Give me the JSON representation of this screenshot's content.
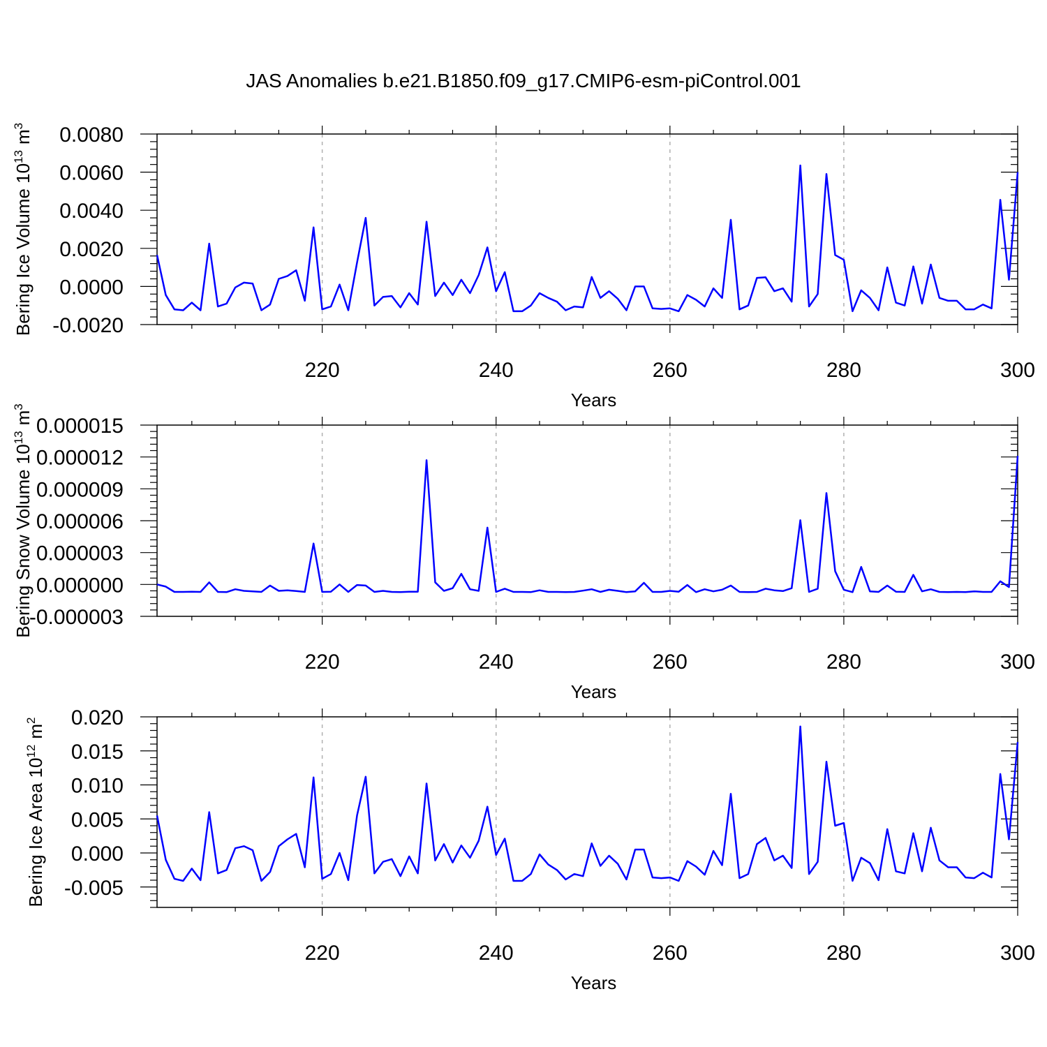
{
  "page": {
    "title": "JAS Anomalies b.e21.B1850.f09_g17.CMIP6-esm-piControl.001"
  },
  "colors": {
    "line": "#0000ff",
    "axis": "#000000",
    "grid": "#b0b0b0"
  },
  "chart_data": [
    {
      "type": "line",
      "title": "",
      "xlabel": "Years",
      "ylabel": "Bering Ice Volume 10",
      "ylabel_sup": "13",
      "ylabel_unit": "m",
      "ylabel_unit_sup": "3",
      "xlim": [
        201,
        300
      ],
      "ylim": [
        -0.002,
        0.008
      ],
      "xticks": [
        220,
        240,
        260,
        280,
        300
      ],
      "xtick_labels": [
        "220",
        "240",
        "260",
        "280",
        "300"
      ],
      "yticks": [
        -0.002,
        0.0,
        0.002,
        0.004,
        0.006,
        0.008
      ],
      "ytick_labels": [
        "-0.0020",
        "0.0000",
        "0.0020",
        "0.0040",
        "0.0060",
        "0.0080"
      ],
      "grid": "vertical dashed",
      "x_start": 201,
      "series": [
        {
          "values": [
            0.00165,
            -0.00045,
            -0.0012,
            -0.00125,
            -0.00085,
            -0.00125,
            0.00225,
            -0.00105,
            -0.0009,
            -5e-05,
            0.0002,
            0.00015,
            -0.00125,
            -0.00095,
            0.0004,
            0.00055,
            0.00085,
            -0.00075,
            0.0031,
            -0.0012,
            -0.00105,
            0.0001,
            -0.00125,
            0.00125,
            0.0036,
            -0.001,
            -0.00055,
            -0.0005,
            -0.0011,
            -0.00035,
            -0.00095,
            0.0034,
            -0.0005,
            0.0002,
            -0.00045,
            0.00035,
            -0.00035,
            0.0006,
            0.00205,
            -0.00025,
            0.00075,
            -0.0013,
            -0.0013,
            -0.001,
            -0.00035,
            -0.0006,
            -0.0008,
            -0.00125,
            -0.00105,
            -0.0011,
            0.0005,
            -0.0006,
            -0.00025,
            -0.00065,
            -0.00125,
            0.0,
            0.0,
            -0.00115,
            -0.00118,
            -0.00115,
            -0.0013,
            -0.00045,
            -0.0007,
            -0.00105,
            -0.0001,
            -0.0006,
            0.0035,
            -0.0012,
            -0.001,
            0.00045,
            0.00048,
            -0.00025,
            -0.0001,
            -0.0008,
            0.00635,
            -0.00105,
            -0.0004,
            0.0059,
            0.00165,
            0.0014,
            -0.0013,
            -0.0002,
            -0.0006,
            -0.00125,
            0.001,
            -0.00085,
            -0.001,
            0.00105,
            -0.0009,
            0.00115,
            -0.0006,
            -0.00075,
            -0.00075,
            -0.0012,
            -0.0012,
            -0.00095,
            -0.00115,
            0.00455,
            0.00035,
            0.006
          ]
        }
      ]
    },
    {
      "type": "line",
      "title": "",
      "xlabel": "Years",
      "ylabel": "Bering Snow Volume 10",
      "ylabel_sup": "13",
      "ylabel_unit": "m",
      "ylabel_unit_sup": "3",
      "xlim": [
        201,
        300
      ],
      "ylim": [
        -3e-06,
        1.5e-05
      ],
      "xticks": [
        220,
        240,
        260,
        280,
        300
      ],
      "xtick_labels": [
        "220",
        "240",
        "260",
        "280",
        "300"
      ],
      "yticks": [
        -3e-06,
        0.0,
        3e-06,
        6e-06,
        9e-06,
        1.2e-05,
        1.5e-05
      ],
      "ytick_labels": [
        "-0.000003",
        "0.000000",
        "0.000003",
        "0.000006",
        "0.000009",
        "0.000012",
        "0.000015"
      ],
      "grid": "vertical dashed",
      "x_start": 201,
      "series": [
        {
          "values": [
            0.0,
            -2e-07,
            -7e-07,
            -7e-07,
            -6.8e-07,
            -7e-07,
            2e-07,
            -7e-07,
            -7.2e-07,
            -4.5e-07,
            -6e-07,
            -6.5e-07,
            -7e-07,
            -1e-07,
            -6e-07,
            -5.5e-07,
            -6.2e-07,
            -7e-07,
            3.85e-06,
            -7e-07,
            -6.8e-07,
            0.0,
            -7e-07,
            -5e-08,
            -1e-07,
            -7e-07,
            -6e-07,
            -7e-07,
            -7.2e-07,
            -6.8e-07,
            -6.8e-07,
            1.17e-05,
            2e-07,
            -6e-07,
            -3.5e-07,
            1e-06,
            -4.5e-07,
            -6e-07,
            5.35e-06,
            -7e-07,
            -4e-07,
            -7e-07,
            -7e-07,
            -7.2e-07,
            -5.5e-07,
            -7e-07,
            -7e-07,
            -7.2e-07,
            -7e-07,
            -5.8e-07,
            -4.5e-07,
            -7e-07,
            -5e-07,
            -6e-07,
            -7.2e-07,
            -6.5e-07,
            1.5e-07,
            -7e-07,
            -7e-07,
            -6e-07,
            -6.8e-07,
            -5e-08,
            -7.2e-07,
            -4.5e-07,
            -6.5e-07,
            -5e-07,
            -1e-07,
            -7e-07,
            -7.2e-07,
            -7e-07,
            -4e-07,
            -5.5e-07,
            -6.2e-07,
            -3.5e-07,
            6.05e-06,
            -7e-07,
            -4e-07,
            8.6e-06,
            1.25e-06,
            -5e-07,
            -7.2e-07,
            1.65e-06,
            -6.5e-07,
            -7e-07,
            -1e-07,
            -6.8e-07,
            -7e-07,
            9e-07,
            -6.5e-07,
            -4.5e-07,
            -7e-07,
            -7.2e-07,
            -7e-07,
            -7.2e-07,
            -6.5e-07,
            -7e-07,
            -7e-07,
            3e-07,
            -2.5e-07,
            1.21e-05
          ]
        }
      ]
    },
    {
      "type": "line",
      "title": "",
      "xlabel": "Years",
      "ylabel": "Bering Ice Area 10",
      "ylabel_sup": "12",
      "ylabel_unit": "m",
      "ylabel_unit_sup": "2",
      "xlim": [
        201,
        300
      ],
      "ylim": [
        -0.008,
        0.02
      ],
      "xticks": [
        220,
        240,
        260,
        280,
        300
      ],
      "xtick_labels": [
        "220",
        "240",
        "260",
        "280",
        "300"
      ],
      "yticks": [
        -0.005,
        0.0,
        0.005,
        0.01,
        0.015,
        0.02
      ],
      "ytick_labels": [
        "-0.005",
        "0.000",
        "0.005",
        "0.010",
        "0.015",
        "0.020"
      ],
      "grid": "vertical dashed",
      "x_start": 201,
      "series": [
        {
          "values": [
            0.0055,
            -0.001,
            -0.0038,
            -0.0041,
            -0.0023,
            -0.004,
            0.006,
            -0.003,
            -0.0025,
            0.0007,
            0.001,
            0.0004,
            -0.0041,
            -0.0028,
            0.001,
            0.002,
            0.0028,
            -0.0021,
            0.0111,
            -0.0038,
            -0.0031,
            0.0,
            -0.004,
            0.0055,
            0.0112,
            -0.003,
            -0.0013,
            -0.0009,
            -0.0034,
            -0.0005,
            -0.003,
            0.0102,
            -0.0011,
            0.0013,
            -0.0014,
            0.0011,
            -0.0007,
            0.0018,
            0.0068,
            -0.0003,
            0.0021,
            -0.0041,
            -0.0041,
            -0.0031,
            -0.0002,
            -0.0017,
            -0.0025,
            -0.0039,
            -0.0031,
            -0.0034,
            0.0014,
            -0.0019,
            -0.0004,
            -0.0016,
            -0.0039,
            0.0005,
            0.0005,
            -0.0036,
            -0.0037,
            -0.0036,
            -0.0041,
            -0.0012,
            -0.002,
            -0.0032,
            0.0003,
            -0.0018,
            0.0087,
            -0.0037,
            -0.0031,
            0.0013,
            0.0022,
            -0.0011,
            -0.0004,
            -0.0022,
            0.0186,
            -0.0031,
            -0.0013,
            0.0134,
            0.004,
            0.0044,
            -0.0041,
            -0.0007,
            -0.0015,
            -0.004,
            0.0035,
            -0.0027,
            -0.003,
            0.0029,
            -0.0027,
            0.0037,
            -0.0011,
            -0.0021,
            -0.0021,
            -0.0036,
            -0.0037,
            -0.0029,
            -0.0036,
            0.0116,
            0.002,
            0.0163
          ]
        }
      ]
    }
  ]
}
